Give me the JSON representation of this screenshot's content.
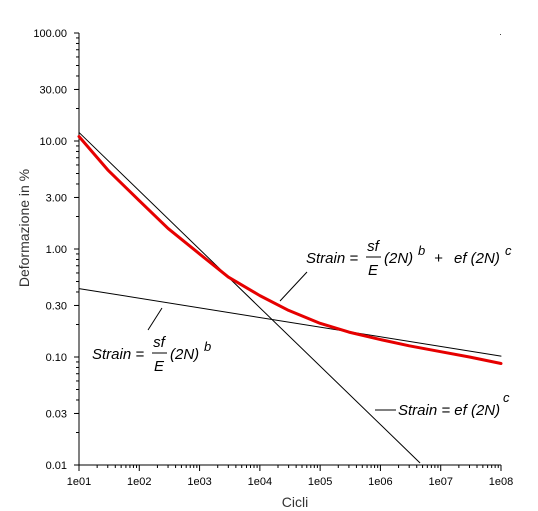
{
  "chart_data": {
    "type": "line",
    "title": "",
    "xlabel": "Cicli",
    "ylabel": "Deformazione in %",
    "xscale": "log",
    "yscale": "log",
    "xlim": [
      10,
      100000000
    ],
    "ylim": [
      0.01,
      100
    ],
    "grid": false,
    "legend": "none",
    "x_tick_labels": [
      "1e01",
      "1e02",
      "1e03",
      "1e04",
      "1e05",
      "1e06",
      "1e07",
      "1e08"
    ],
    "y_tick_labels": [
      "0.01",
      "0.03",
      "0.10",
      "0.30",
      "1.00",
      "3.00",
      "10.00",
      "30.00",
      "100.00"
    ],
    "series": [
      {
        "color": "#e60000",
        "x": [
          10,
          30,
          100,
          300,
          1000,
          3000,
          10000,
          30000,
          100000,
          300000,
          1000000,
          3000000,
          10000000,
          30000000,
          100000000
        ],
        "y": [
          11,
          5.4,
          2.8,
          1.55,
          0.9,
          0.55,
          0.37,
          0.27,
          0.205,
          0.17,
          0.145,
          0.127,
          0.112,
          0.1,
          0.087
        ]
      },
      {
        "color": "#000000",
        "x": [
          10,
          4500000
        ],
        "y": [
          12,
          0.0105
        ]
      },
      {
        "color": "#000000",
        "x": [
          10,
          100000000
        ],
        "y": [
          0.43,
          0.102
        ]
      }
    ],
    "annotations": {
      "total": {
        "lhs": "Strain = ",
        "num": "sf",
        "den": "E",
        "term1": "(2N)",
        "exp1": "b",
        "plus": "+",
        "term2": "ef (2N)",
        "exp2": "c"
      },
      "elastic": {
        "lhs": "Strain = ",
        "num": "sf",
        "den": "E",
        "term": "(2N)",
        "exp": "b"
      },
      "plastic": {
        "text": "Strain = ef (2N)",
        "exp": "c"
      }
    }
  }
}
